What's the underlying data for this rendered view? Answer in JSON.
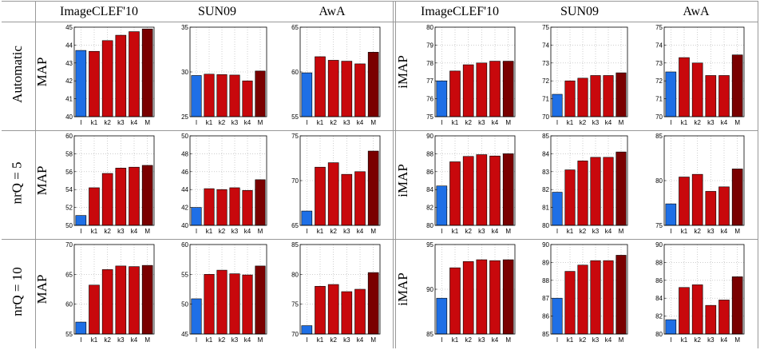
{
  "header": {
    "columns": [
      "ImageCLEF'10",
      "SUN09",
      "AwA",
      "ImageCLEF'10",
      "SUN09",
      "AwA"
    ]
  },
  "rows": [
    "Automatic",
    "nrQ = 5",
    "nrQ = 10"
  ],
  "colors": {
    "I": "#1e6fe6",
    "k": "#c8080c",
    "M": "#7a0000",
    "axis": "#000000",
    "grid": "#b0b0b0",
    "table_lines": "#999999"
  },
  "chart_data": [
    {
      "type": "bar",
      "row": "Automatic",
      "dataset": "ImageCLEF'10",
      "ylabel": "MAP",
      "ylim": [
        40,
        45
      ],
      "yticks": [
        "40",
        "41",
        "42",
        "43",
        "44",
        "45"
      ],
      "categories": [
        "I",
        "k1",
        "k2",
        "k3",
        "k4",
        "M"
      ],
      "values": [
        43.7,
        43.65,
        44.25,
        44.55,
        44.75,
        44.9
      ]
    },
    {
      "type": "bar",
      "row": "Automatic",
      "dataset": "SUN09",
      "ylabel": "",
      "ylim": [
        25,
        35
      ],
      "yticks": [
        "25",
        "30",
        "35"
      ],
      "categories": [
        "I",
        "k1",
        "k2",
        "k3",
        "k4",
        "M"
      ],
      "values": [
        29.6,
        29.75,
        29.7,
        29.65,
        29.0,
        30.1
      ]
    },
    {
      "type": "bar",
      "row": "Automatic",
      "dataset": "AwA",
      "ylabel": "",
      "ylim": [
        55,
        65
      ],
      "yticks": [
        "55",
        "60",
        "65"
      ],
      "categories": [
        "I",
        "k1",
        "k2",
        "k3",
        "k4",
        "M"
      ],
      "values": [
        59.9,
        61.7,
        61.3,
        61.2,
        60.9,
        62.2
      ]
    },
    {
      "type": "bar",
      "row": "Automatic",
      "dataset": "ImageCLEF'10",
      "ylabel": "iMAP",
      "ylim": [
        75,
        80
      ],
      "yticks": [
        "75",
        "76",
        "77",
        "78",
        "79",
        "80"
      ],
      "categories": [
        "I",
        "k1",
        "k2",
        "k3",
        "k4",
        "M"
      ],
      "values": [
        77.0,
        77.55,
        77.9,
        78.0,
        78.1,
        78.1
      ]
    },
    {
      "type": "bar",
      "row": "Automatic",
      "dataset": "SUN09",
      "ylabel": "",
      "ylim": [
        70,
        75
      ],
      "yticks": [
        "70",
        "71",
        "72",
        "73",
        "74",
        "75"
      ],
      "categories": [
        "I",
        "k1",
        "k2",
        "k3",
        "k4",
        "M"
      ],
      "values": [
        71.25,
        72.0,
        72.15,
        72.3,
        72.3,
        72.45
      ]
    },
    {
      "type": "bar",
      "row": "Automatic",
      "dataset": "AwA",
      "ylabel": "",
      "ylim": [
        70,
        75
      ],
      "yticks": [
        "70",
        "71",
        "72",
        "73",
        "74",
        "75"
      ],
      "categories": [
        "I",
        "k1",
        "k2",
        "k3",
        "k4",
        "M"
      ],
      "values": [
        72.5,
        73.3,
        73.0,
        72.3,
        72.3,
        73.45
      ]
    },
    {
      "type": "bar",
      "row": "nrQ = 5",
      "dataset": "ImageCLEF'10",
      "ylabel": "MAP",
      "ylim": [
        50,
        60
      ],
      "yticks": [
        "50",
        "52",
        "54",
        "56",
        "58",
        "60"
      ],
      "categories": [
        "I",
        "k1",
        "k2",
        "k3",
        "k4",
        "M"
      ],
      "values": [
        51.1,
        54.2,
        55.8,
        56.4,
        56.5,
        56.7
      ]
    },
    {
      "type": "bar",
      "row": "nrQ = 5",
      "dataset": "SUN09",
      "ylabel": "",
      "ylim": [
        40,
        50
      ],
      "yticks": [
        "40",
        "42",
        "44",
        "46",
        "48",
        "50"
      ],
      "categories": [
        "I",
        "k1",
        "k2",
        "k3",
        "k4",
        "M"
      ],
      "values": [
        42.0,
        44.1,
        44.0,
        44.2,
        43.9,
        45.1
      ]
    },
    {
      "type": "bar",
      "row": "nrQ = 5",
      "dataset": "AwA",
      "ylabel": "",
      "ylim": [
        65,
        75
      ],
      "yticks": [
        "65",
        "70",
        "75"
      ],
      "categories": [
        "I",
        "k1",
        "k2",
        "k3",
        "k4",
        "M"
      ],
      "values": [
        66.6,
        71.5,
        72.0,
        70.7,
        71.0,
        73.3
      ]
    },
    {
      "type": "bar",
      "row": "nrQ = 5",
      "dataset": "ImageCLEF'10",
      "ylabel": "iMAP",
      "ylim": [
        80,
        90
      ],
      "yticks": [
        "80",
        "82",
        "84",
        "86",
        "88",
        "90"
      ],
      "categories": [
        "I",
        "k1",
        "k2",
        "k3",
        "k4",
        "M"
      ],
      "values": [
        84.4,
        87.1,
        87.7,
        87.9,
        87.75,
        88.0
      ]
    },
    {
      "type": "bar",
      "row": "nrQ = 5",
      "dataset": "SUN09",
      "ylabel": "",
      "ylim": [
        80,
        85
      ],
      "yticks": [
        "80",
        "81",
        "82",
        "83",
        "84",
        "85"
      ],
      "categories": [
        "I",
        "k1",
        "k2",
        "k3",
        "k4",
        "M"
      ],
      "values": [
        81.85,
        83.1,
        83.6,
        83.8,
        83.8,
        84.1
      ]
    },
    {
      "type": "bar",
      "row": "nrQ = 5",
      "dataset": "AwA",
      "ylabel": "",
      "ylim": [
        75,
        85
      ],
      "yticks": [
        "75",
        "80",
        "85"
      ],
      "categories": [
        "I",
        "k1",
        "k2",
        "k3",
        "k4",
        "M"
      ],
      "values": [
        77.4,
        80.4,
        80.7,
        78.8,
        79.3,
        81.3
      ]
    },
    {
      "type": "bar",
      "row": "nrQ = 10",
      "dataset": "ImageCLEF'10",
      "ylabel": "MAP",
      "ylim": [
        55,
        70
      ],
      "yticks": [
        "55",
        "60",
        "65",
        "70"
      ],
      "categories": [
        "I",
        "k1",
        "k2",
        "k3",
        "k4",
        "M"
      ],
      "values": [
        57.0,
        63.2,
        65.8,
        66.4,
        66.3,
        66.5
      ]
    },
    {
      "type": "bar",
      "row": "nrQ = 10",
      "dataset": "SUN09",
      "ylabel": "",
      "ylim": [
        45,
        60
      ],
      "yticks": [
        "45",
        "50",
        "55",
        "60"
      ],
      "categories": [
        "I",
        "k1",
        "k2",
        "k3",
        "k4",
        "M"
      ],
      "values": [
        50.9,
        55.0,
        55.7,
        55.1,
        54.9,
        56.4
      ]
    },
    {
      "type": "bar",
      "row": "nrQ = 10",
      "dataset": "AwA",
      "ylabel": "",
      "ylim": [
        70,
        85
      ],
      "yticks": [
        "70",
        "75",
        "80",
        "85"
      ],
      "categories": [
        "I",
        "k1",
        "k2",
        "k3",
        "k4",
        "M"
      ],
      "values": [
        71.4,
        78.0,
        78.3,
        77.1,
        77.5,
        80.3
      ]
    },
    {
      "type": "bar",
      "row": "nrQ = 10",
      "dataset": "ImageCLEF'10",
      "ylabel": "iMAP",
      "ylim": [
        85,
        95
      ],
      "yticks": [
        "85",
        "90",
        "95"
      ],
      "categories": [
        "I",
        "k1",
        "k2",
        "k3",
        "k4",
        "M"
      ],
      "values": [
        89.0,
        92.4,
        93.1,
        93.3,
        93.2,
        93.3
      ]
    },
    {
      "type": "bar",
      "row": "nrQ = 10",
      "dataset": "SUN09",
      "ylabel": "",
      "ylim": [
        85,
        90
      ],
      "yticks": [
        "85",
        "86",
        "87",
        "88",
        "89",
        "90"
      ],
      "categories": [
        "I",
        "k1",
        "k2",
        "k3",
        "k4",
        "M"
      ],
      "values": [
        87.0,
        88.5,
        88.85,
        89.1,
        89.1,
        89.4
      ]
    },
    {
      "type": "bar",
      "row": "nrQ = 10",
      "dataset": "AwA",
      "ylabel": "",
      "ylim": [
        80,
        90
      ],
      "yticks": [
        "80",
        "82",
        "84",
        "86",
        "88",
        "90"
      ],
      "categories": [
        "I",
        "k1",
        "k2",
        "k3",
        "k4",
        "M"
      ],
      "values": [
        81.6,
        85.2,
        85.5,
        83.2,
        83.8,
        86.4
      ]
    }
  ]
}
